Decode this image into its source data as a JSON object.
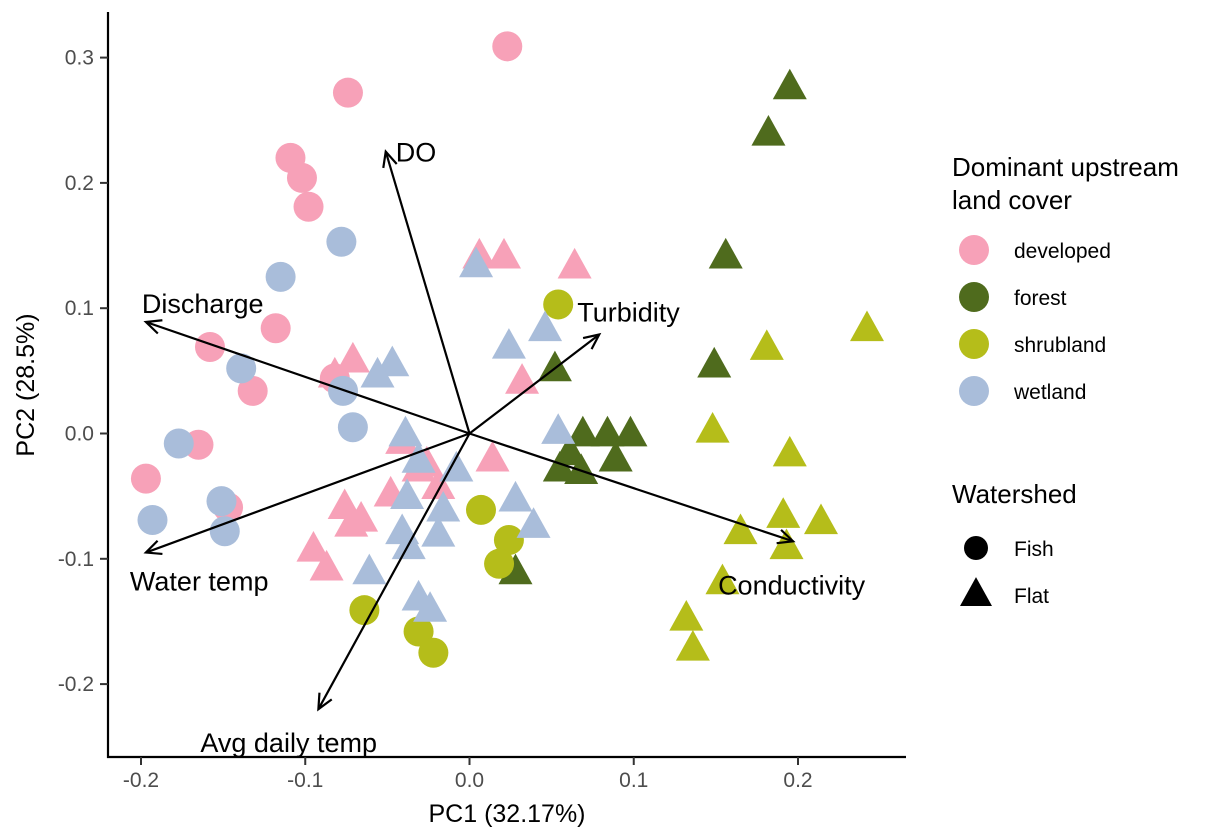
{
  "chart_data": {
    "type": "scatter",
    "subtype": "pca-biplot",
    "xlabel": "PC1 (32.17%)",
    "ylabel": "PC2 (28.5%)",
    "xlim": [
      -0.22,
      0.265
    ],
    "ylim": [
      -0.255,
      0.335
    ],
    "x_ticks": [
      -0.2,
      -0.1,
      0.0,
      0.1,
      0.2
    ],
    "x_tick_labels": [
      "-0.2",
      "-0.1",
      "0.0",
      "0.1",
      "0.2"
    ],
    "y_ticks": [
      -0.2,
      -0.1,
      0.0,
      0.1,
      0.2,
      0.3
    ],
    "y_tick_labels": [
      "-0.2",
      "-0.1",
      "0.0",
      "0.1",
      "0.2",
      "0.3"
    ],
    "grid": false,
    "legend_position": "right",
    "colors": {
      "developed": "#F7A1B8",
      "forest": "#4F6B1D",
      "shrubland": "#B5BD1A",
      "wetland": "#A9BDDA"
    },
    "legends": [
      {
        "title": "Dominant upstream land cover",
        "title_lines": [
          "Dominant upstream",
          "land cover"
        ],
        "entries": [
          {
            "label": "developed",
            "key": "developed"
          },
          {
            "label": "forest",
            "key": "forest"
          },
          {
            "label": "shrubland",
            "key": "shrubland"
          },
          {
            "label": "wetland",
            "key": "wetland"
          }
        ]
      },
      {
        "title": "Watershed",
        "entries": [
          {
            "label": "Fish",
            "shape": "circle"
          },
          {
            "label": "Flat",
            "shape": "triangle"
          }
        ]
      }
    ],
    "loadings": [
      {
        "label": "DO",
        "x": -0.051,
        "y": 0.225
      },
      {
        "label": "Discharge",
        "x": -0.197,
        "y": 0.089
      },
      {
        "label": "Turbidity",
        "x": 0.079,
        "y": 0.079
      },
      {
        "label": "Water temp",
        "x": -0.197,
        "y": -0.095
      },
      {
        "label": "Conductivity",
        "x": 0.197,
        "y": -0.086
      },
      {
        "label": "Avg daily temp",
        "x": -0.092,
        "y": -0.22
      }
    ],
    "series": [
      {
        "name": "developed",
        "watershed": "Fish",
        "shape": "circle",
        "points": [
          [
            0.023,
            0.309
          ],
          [
            -0.074,
            0.272
          ],
          [
            -0.109,
            0.22
          ],
          [
            -0.102,
            0.204
          ],
          [
            -0.098,
            0.181
          ],
          [
            -0.118,
            0.084
          ],
          [
            -0.158,
            0.069
          ],
          [
            -0.132,
            0.034
          ],
          [
            -0.082,
            0.044
          ],
          [
            -0.165,
            -0.009
          ],
          [
            -0.197,
            -0.036
          ],
          [
            -0.147,
            -0.059
          ]
        ]
      },
      {
        "name": "developed",
        "watershed": "Flat",
        "shape": "triangle",
        "points": [
          [
            0.006,
            0.141
          ],
          [
            0.021,
            0.141
          ],
          [
            0.064,
            0.133
          ],
          [
            0.032,
            0.041
          ],
          [
            -0.071,
            0.058
          ],
          [
            -0.082,
            0.046
          ],
          [
            -0.041,
            -0.007
          ],
          [
            -0.031,
            -0.029
          ],
          [
            -0.019,
            -0.043
          ],
          [
            0.014,
            -0.021
          ],
          [
            -0.048,
            -0.049
          ],
          [
            -0.076,
            -0.059
          ],
          [
            -0.066,
            -0.069
          ],
          [
            -0.072,
            -0.073
          ],
          [
            -0.095,
            -0.093
          ],
          [
            -0.087,
            -0.108
          ],
          [
            -0.026,
            -0.025
          ]
        ]
      },
      {
        "name": "forest",
        "watershed": "Flat",
        "shape": "triangle",
        "points": [
          [
            0.195,
            0.276
          ],
          [
            0.182,
            0.239
          ],
          [
            0.156,
            0.141
          ],
          [
            0.149,
            0.054
          ],
          [
            0.052,
            0.051
          ],
          [
            0.069,
            -0.001
          ],
          [
            0.084,
            -0.001
          ],
          [
            0.098,
            -0.001
          ],
          [
            0.061,
            -0.016
          ],
          [
            0.089,
            -0.021
          ],
          [
            0.055,
            -0.029
          ],
          [
            0.068,
            -0.031
          ],
          [
            0.028,
            -0.111
          ]
        ]
      },
      {
        "name": "shrubland",
        "watershed": "Fish",
        "shape": "circle",
        "points": [
          [
            0.054,
            0.103
          ],
          [
            0.007,
            -0.061
          ],
          [
            0.024,
            -0.085
          ],
          [
            0.018,
            -0.104
          ],
          [
            -0.064,
            -0.141
          ],
          [
            -0.031,
            -0.158
          ],
          [
            -0.022,
            -0.175
          ]
        ]
      },
      {
        "name": "shrubland",
        "watershed": "Flat",
        "shape": "triangle",
        "points": [
          [
            0.242,
            0.083
          ],
          [
            0.181,
            0.068
          ],
          [
            0.148,
            0.002
          ],
          [
            0.195,
            -0.017
          ],
          [
            0.191,
            -0.066
          ],
          [
            0.214,
            -0.071
          ],
          [
            0.165,
            -0.079
          ],
          [
            0.193,
            -0.091
          ],
          [
            0.154,
            -0.119
          ],
          [
            0.132,
            -0.148
          ],
          [
            0.136,
            -0.172
          ]
        ]
      },
      {
        "name": "wetland",
        "watershed": "Fish",
        "shape": "circle",
        "points": [
          [
            -0.078,
            0.153
          ],
          [
            -0.115,
            0.125
          ],
          [
            -0.139,
            0.052
          ],
          [
            -0.077,
            0.034
          ],
          [
            -0.071,
            0.005
          ],
          [
            -0.177,
            -0.008
          ],
          [
            -0.151,
            -0.054
          ],
          [
            -0.193,
            -0.069
          ],
          [
            -0.149,
            -0.078
          ]
        ]
      },
      {
        "name": "wetland",
        "watershed": "Flat",
        "shape": "triangle",
        "points": [
          [
            0.004,
            0.134
          ],
          [
            0.046,
            0.083
          ],
          [
            0.024,
            0.069
          ],
          [
            -0.047,
            0.055
          ],
          [
            -0.056,
            0.046
          ],
          [
            -0.039,
            -0.001
          ],
          [
            0.054,
            0.001
          ],
          [
            -0.031,
            -0.022
          ],
          [
            -0.008,
            -0.029
          ],
          [
            0.028,
            -0.053
          ],
          [
            -0.016,
            -0.061
          ],
          [
            0.039,
            -0.074
          ],
          [
            -0.041,
            -0.079
          ],
          [
            -0.037,
            -0.091
          ],
          [
            -0.019,
            -0.081
          ],
          [
            -0.061,
            -0.111
          ],
          [
            -0.031,
            -0.132
          ],
          [
            -0.024,
            -0.141
          ],
          [
            -0.038,
            -0.051
          ]
        ]
      }
    ]
  }
}
